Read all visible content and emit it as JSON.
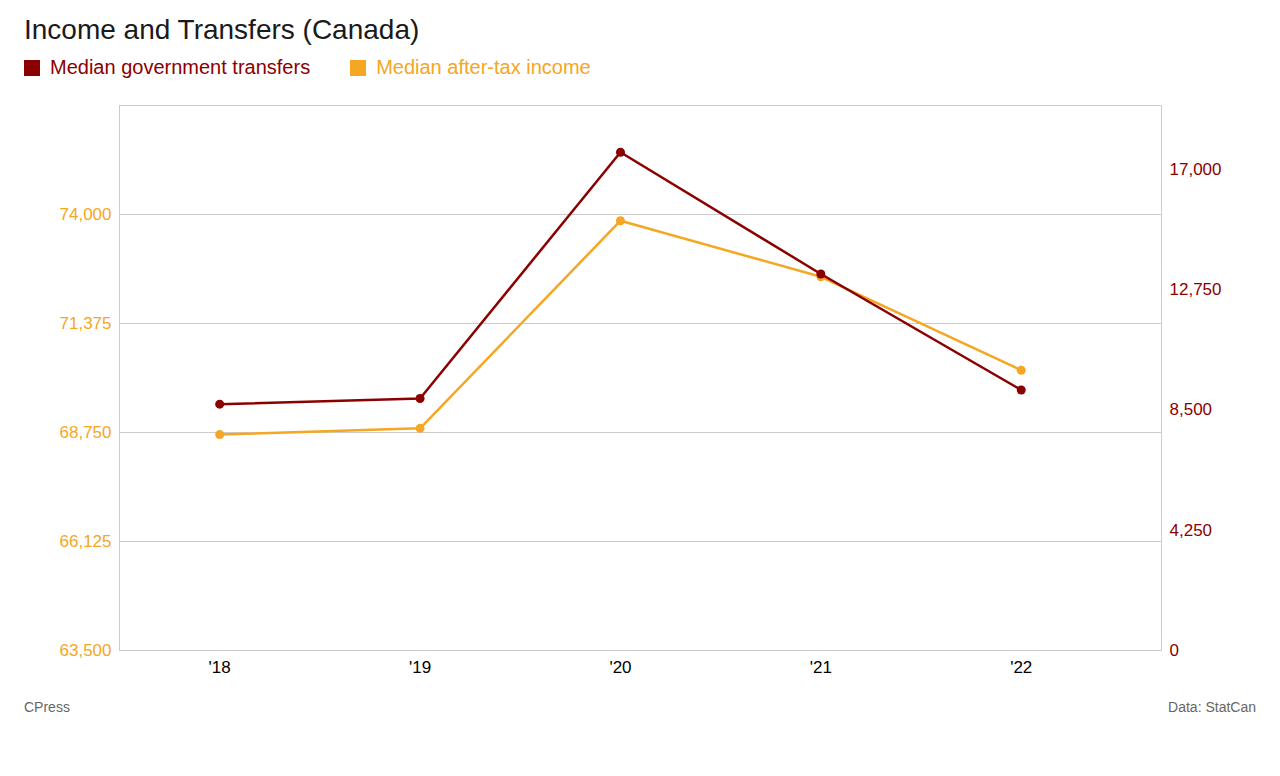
{
  "chart_data": {
    "type": "line",
    "title": "Income and Transfers (Canada)",
    "x": [
      2018,
      2019,
      2020,
      2021,
      2022
    ],
    "xlim": [
      2017.5,
      2022.7
    ],
    "xticks": [
      {
        "value": 2018,
        "label": "'18"
      },
      {
        "value": 2019,
        "label": "'19"
      },
      {
        "value": 2020,
        "label": "'20"
      },
      {
        "value": 2021,
        "label": "'21"
      },
      {
        "value": 2022,
        "label": "'22"
      }
    ],
    "ylim": [
      63500,
      76625
    ],
    "yticks": [
      {
        "value": 63500,
        "label": "63,500"
      },
      {
        "value": 66125,
        "label": "66,125"
      },
      {
        "value": 68750,
        "label": "68,750"
      },
      {
        "value": 71375,
        "label": "71,375"
      },
      {
        "value": 74000,
        "label": "74,000"
      }
    ],
    "y2lim": [
      0,
      19250
    ],
    "y2ticks": [
      0,
      {
        "value": 4250,
        "label": "4,250"
      },
      {
        "value": 8500,
        "label": "8,500"
      },
      {
        "value": 12750,
        "label": "12,750"
      },
      {
        "value": 17000,
        "label": "17,000"
      }
    ],
    "series": [
      {
        "name": "Median government transfers",
        "color": "#8B0000",
        "values": [
          8700,
          8900,
          17600,
          13300,
          9200
        ],
        "axis": "y2",
        "marker": "circle"
      },
      {
        "name": "Median after-tax income",
        "color": "#F5A623",
        "values": [
          68700,
          68850,
          73850,
          72500,
          70250
        ],
        "marker": "circle"
      }
    ],
    "grid": true,
    "legend": "top",
    "annotations": [
      "CPress",
      "Data: StatCan"
    ]
  }
}
